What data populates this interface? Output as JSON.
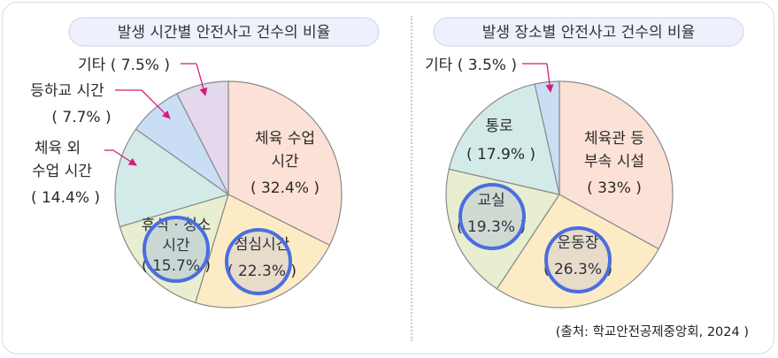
{
  "colors": {
    "leader": "#d81b77",
    "circle_stroke": "#4a6ee0",
    "outline": "#8a8a8a"
  },
  "chart_data": [
    {
      "type": "pie",
      "title": "발생 시간별 안전사고 건수의 비율",
      "slices": [
        {
          "label": "체육 수업 시간",
          "value": 32.4,
          "value_text": "( 32.4% )",
          "color": "#fbe1d6"
        },
        {
          "label": "점심시간",
          "value": 22.3,
          "value_text": "( 22.3% )",
          "color": "#fdebc6"
        },
        {
          "label": "휴식 · 청소 시간",
          "value": 15.7,
          "value_text": "( 15.7% )",
          "color": "#e8eed0"
        },
        {
          "label": "체육 외 수업 시간",
          "value": 14.4,
          "value_text": "( 14.4% )",
          "color": "#d3ebe8"
        },
        {
          "label": "등하교 시간",
          "value": 7.7,
          "value_text": "( 7.7% )",
          "color": "#c9def5"
        },
        {
          "label": "기타",
          "value": 7.5,
          "value_text": "기타 ( 7.5% )",
          "color": "#e4d8ec"
        }
      ],
      "highlighted": [
        "점심시간",
        "휴식 · 청소 시간"
      ]
    },
    {
      "type": "pie",
      "title": "발생 장소별 안전사고 건수의 비율",
      "slices": [
        {
          "label": "체육관 등 부속 시설",
          "value": 33,
          "value_text": "( 33% )",
          "color": "#fbe1d6"
        },
        {
          "label": "운동장",
          "value": 26.3,
          "value_text": "( 26.3% )",
          "color": "#fdebc6"
        },
        {
          "label": "교실",
          "value": 19.3,
          "value_text": "( 19.3% )",
          "color": "#e8eed0"
        },
        {
          "label": "통로",
          "value": 17.9,
          "value_text": "( 17.9% )",
          "color": "#d3ebe8"
        },
        {
          "label": "기타",
          "value": 3.5,
          "value_text": "기타 ( 3.5% )",
          "color": "#c9def5"
        }
      ],
      "highlighted": [
        "운동장",
        "교실"
      ]
    }
  ],
  "labels": {
    "left": {
      "exercise_l1": "체육 수업",
      "exercise_l2": "시간",
      "exercise_val": "( 32.4% )",
      "lunch": "점심시간",
      "lunch_val": "( 22.3% )",
      "rest_l1": "휴식 · 청소",
      "rest_l2": "시간",
      "rest_val": "( 15.7% )",
      "nonpe_l1": "체육 외",
      "nonpe_l2": "수업 시간",
      "nonpe_val": "( 14.4% )",
      "commute_l1": "등하교 시간",
      "commute_val": "( 7.7% )",
      "other": "기타 ( 7.5% )"
    },
    "right": {
      "gym_l1": "체육관 등",
      "gym_l2": "부속 시설",
      "gym_val": "( 33% )",
      "field": "운동장",
      "field_val": "( 26.3% )",
      "class": "교실",
      "class_val": "( 19.3% )",
      "hall": "통로",
      "hall_val": "( 17.9% )",
      "other": "기타 ( 3.5% )"
    }
  },
  "source": "(출처: 학교안전공제중앙회, 2024 )"
}
